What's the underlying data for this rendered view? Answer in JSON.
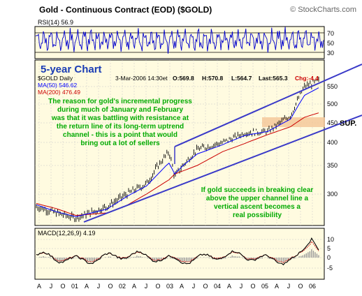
{
  "header": {
    "title": "Gold - Continuous Contract (EOD) ($GOLD)",
    "source": "© StockCharts.com"
  },
  "rsi_panel": {
    "label": "RSI(14) 56.9",
    "ticks": [
      "70",
      "50",
      "30"
    ]
  },
  "price_panel": {
    "chart_title": "5-year Chart",
    "info_line1": "$GOLD Daily",
    "info_date": "3-Mar-2006 14:30et",
    "info_open": "O:569.8",
    "info_high": "H:570.8",
    "info_low": "L:564.7",
    "info_last": "Last:565.3",
    "info_chg": "Chg:-4.4",
    "ma50_label": "MA(50) 546.62",
    "ma200_label": "MA(200) 476.49",
    "ticks": [
      "550",
      "500",
      "450",
      "400",
      "350",
      "300"
    ],
    "sup_label": "SUP.",
    "annotation1": [
      "The reason for gold's incremental progress",
      "during much of January and February",
      "was that it was battling with resistance at",
      "the return line of its long-term uptrend",
      "channel - this is a point that would",
      "bring out a lot of sellers"
    ],
    "annotation2": [
      "If gold succeeds in breaking clear",
      "above the upper channel line a",
      "vertical ascent becomes a",
      "real possibility"
    ]
  },
  "macd_panel": {
    "label": "MACD(12,26,9) 4.19",
    "ticks": [
      "10",
      "5",
      "0",
      "-5"
    ]
  },
  "x_axis": {
    "labels": [
      "A",
      "J",
      "O",
      "01",
      "A",
      "J",
      "O",
      "02",
      "A",
      "J",
      "O",
      "03",
      "A",
      "J",
      "O",
      "04",
      "A",
      "J",
      "O",
      "05",
      "A",
      "J",
      "O",
      "06"
    ]
  },
  "colors": {
    "panel_bg": "#fffbe0",
    "grid": "#c8c8c8",
    "price_bar": "#000000",
    "ma50": "#0000ff",
    "ma200": "#cc0000",
    "channel": "#3a3ac8",
    "annotation": "#00aa00",
    "rsi_line": "#0000cc",
    "macd_hist": "#999999",
    "support_band": "#f5c89a",
    "title_blue": "#1a3cb4"
  },
  "chart_data": {
    "type": "line",
    "title": "Gold - Continuous Contract (EOD) ($GOLD)",
    "x": [
      "2000-04",
      "2000-10",
      "2001-04",
      "2001-10",
      "2002-04",
      "2002-10",
      "2003-02",
      "2003-04",
      "2003-10",
      "2004-04",
      "2004-10",
      "2005-04",
      "2005-10",
      "2006-01",
      "2006-03"
    ],
    "series": [
      {
        "name": "$GOLD",
        "values": [
          280,
          270,
          262,
          280,
          300,
          318,
          380,
          330,
          385,
          400,
          425,
          428,
          470,
          550,
          565
        ]
      },
      {
        "name": "MA(50)",
        "values": [
          283,
          272,
          264,
          276,
          296,
          314,
          355,
          335,
          375,
          395,
          418,
          428,
          460,
          525,
          546.62
        ]
      },
      {
        "name": "MA(200)",
        "values": [
          285,
          277,
          266,
          270,
          282,
          300,
          325,
          335,
          350,
          380,
          398,
          420,
          440,
          465,
          476.49
        ]
      }
    ],
    "ylim": [
      250,
      580
    ],
    "rsi": {
      "value": 56.9,
      "levels": [
        70,
        50,
        30
      ]
    },
    "macd": {
      "value": 4.19,
      "ylim": [
        -6,
        14
      ]
    },
    "support_level": 450
  }
}
